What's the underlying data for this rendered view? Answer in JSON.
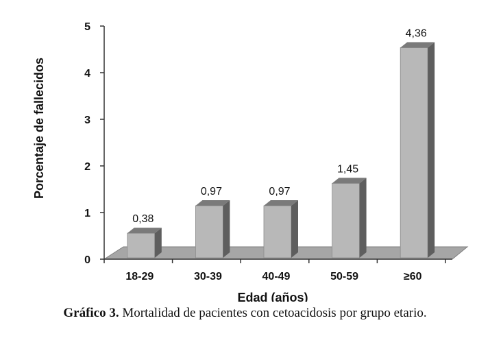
{
  "chart_data": {
    "type": "bar",
    "categories": [
      "18-29",
      "30-39",
      "40-49",
      "50-59",
      "≥60"
    ],
    "values": [
      0.38,
      0.97,
      0.97,
      1.45,
      4.36
    ],
    "value_labels": [
      "0,38",
      "0,97",
      "0,97",
      "1,45",
      "4,36"
    ],
    "xlabel": "Edad (años)",
    "ylabel": "Porcentaje de fallecidos",
    "ylim": [
      0,
      5
    ],
    "yticks": [
      "0",
      "1",
      "2",
      "3",
      "4",
      "5"
    ],
    "style": "3d-column",
    "grid": false,
    "legend": "none"
  },
  "caption": {
    "label": "Gráfico 3.",
    "text": " Mortalidad de pacientes con cetoacidosis por grupo etario."
  },
  "colors": {
    "bar_front": "#b8b8b8",
    "bar_top": "#7a7a7a",
    "bar_side": "#5e5e5e",
    "floor": "#a6a6a6",
    "axis": "#333333"
  }
}
